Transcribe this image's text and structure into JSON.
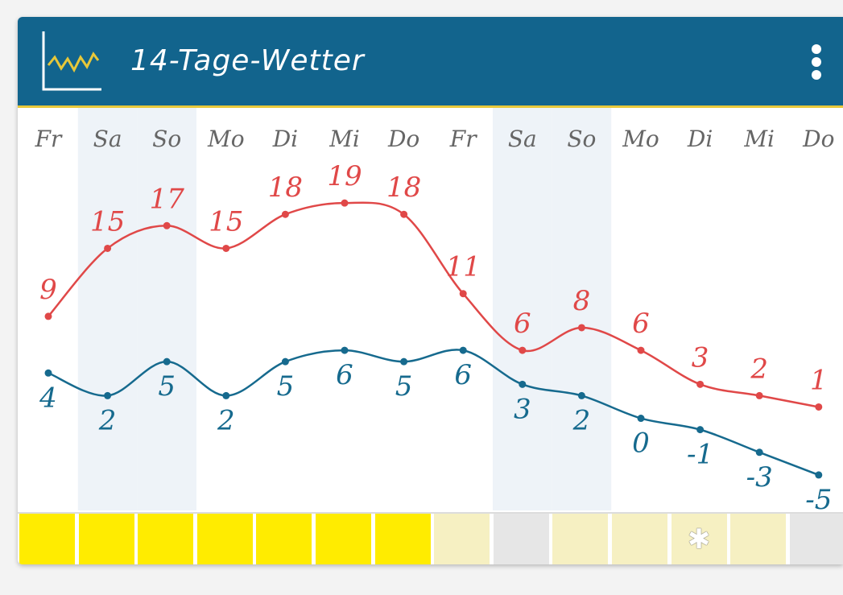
{
  "header": {
    "title": "14-Tage-Wetter",
    "logo_icon": "line-chart-icon",
    "menu_icon": "more-vertical-icon"
  },
  "colors": {
    "header_bg": "#12648d",
    "accent": "#e7c83a",
    "max_line": "#e04848",
    "min_line": "#166a8e",
    "weekend_bg": "#eef3f8",
    "sunny": "#ffec00",
    "light_sun": "#f6f0c2",
    "cloudy": "#e6e6e6",
    "snow": "#f6f0c2"
  },
  "days": [
    "Fr",
    "Sa",
    "So",
    "Mo",
    "Di",
    "Mi",
    "Do",
    "Fr",
    "Sa",
    "So",
    "Mo",
    "Di",
    "Mi",
    "Do"
  ],
  "weekend_days": [
    1,
    2,
    8,
    9
  ],
  "chart_data": {
    "type": "line",
    "categories": [
      "Fr",
      "Sa",
      "So",
      "Mo",
      "Di",
      "Mi",
      "Do",
      "Fr",
      "Sa",
      "So",
      "Mo",
      "Di",
      "Mi",
      "Do"
    ],
    "series": [
      {
        "values": [
          9,
          15,
          17,
          15,
          18,
          19,
          18,
          11,
          6,
          8,
          6,
          3,
          2,
          1
        ]
      },
      {
        "values": [
          4,
          2,
          5,
          2,
          5,
          6,
          5,
          6,
          3,
          2,
          0,
          -1,
          -3,
          -5
        ]
      }
    ],
    "title": "14-Tage-Wetter",
    "xlabel": "",
    "ylabel": "",
    "ylim": [
      -6,
      21
    ],
    "grid": false,
    "labels_shown": [
      "9",
      "15",
      "17",
      "15",
      "18",
      "19",
      "18",
      "11",
      "6",
      "8",
      "6",
      "3",
      "2",
      "1",
      "4",
      "2",
      "5",
      "2",
      "5",
      "6",
      "5",
      "6",
      "3",
      "2",
      "0",
      "-1",
      "-3",
      "-5"
    ]
  },
  "weather_strip": [
    {
      "kind": "sunny",
      "icon": ""
    },
    {
      "kind": "sunny",
      "icon": ""
    },
    {
      "kind": "sunny",
      "icon": ""
    },
    {
      "kind": "sunny",
      "icon": ""
    },
    {
      "kind": "sunny",
      "icon": ""
    },
    {
      "kind": "sunny",
      "icon": ""
    },
    {
      "kind": "sunny",
      "icon": ""
    },
    {
      "kind": "light_sun",
      "icon": ""
    },
    {
      "kind": "cloudy",
      "icon": ""
    },
    {
      "kind": "light_sun",
      "icon": ""
    },
    {
      "kind": "light_sun",
      "icon": ""
    },
    {
      "kind": "snow",
      "icon": "snowflake-icon"
    },
    {
      "kind": "light_sun",
      "icon": ""
    },
    {
      "kind": "cloudy",
      "icon": ""
    }
  ]
}
